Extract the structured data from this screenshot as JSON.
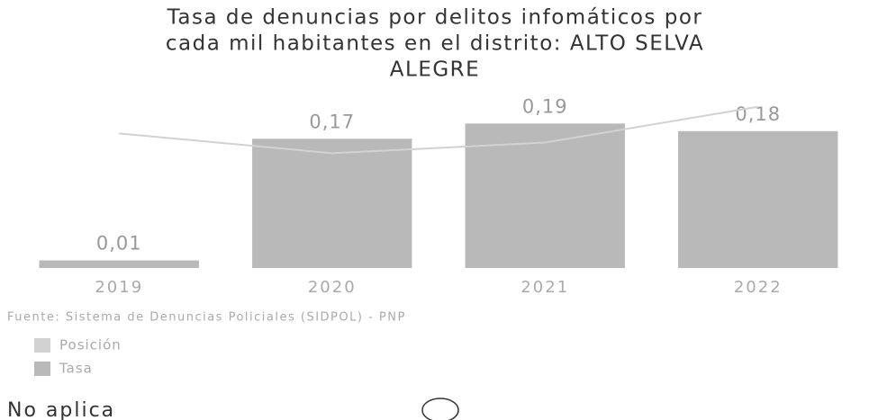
{
  "chart_data": {
    "type": "bar",
    "title": [
      "Tasa de denuncias por delitos infomáticos por",
      "cada mil habitantes en el distrito: ALTO SELVA",
      "ALEGRE"
    ],
    "categories": [
      "2019",
      "2020",
      "2021",
      "2022"
    ],
    "series": [
      {
        "name": "Posición",
        "type": "line",
        "color": "#d2d2d2",
        "values": [
          0.177,
          0.151,
          0.165,
          0.212
        ]
      },
      {
        "name": "Tasa",
        "type": "bar",
        "color": "#b9b9b9",
        "values": [
          0.01,
          0.17,
          0.19,
          0.18
        ],
        "value_labels": [
          "0,01",
          "0,17",
          "0,19",
          "0,18"
        ]
      }
    ],
    "ylim": [
      0,
      0.22
    ],
    "source": "Fuente: Sistema de Denuncias Policiales (SIDPOL) - PNP",
    "note": "No aplica"
  }
}
